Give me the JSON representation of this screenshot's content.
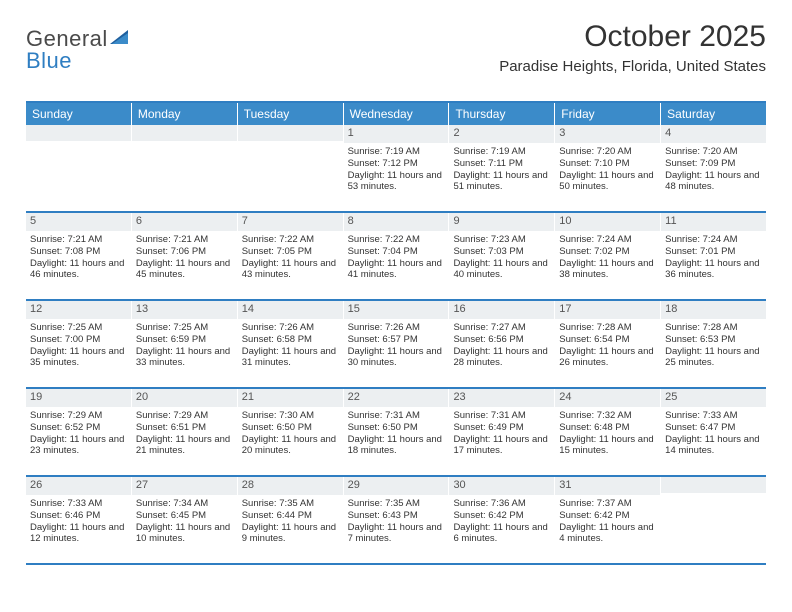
{
  "logo": {
    "text1": "General",
    "text2": "Blue"
  },
  "title": "October 2025",
  "location": "Paradise Heights, Florida, United States",
  "colors": {
    "header_bg": "#3b8bc9",
    "header_text": "#ffffff",
    "rule": "#2f7ec2",
    "daynum_bg": "#eceff1",
    "body_text": "#333333",
    "page_bg": "#ffffff"
  },
  "day_headers": [
    "Sunday",
    "Monday",
    "Tuesday",
    "Wednesday",
    "Thursday",
    "Friday",
    "Saturday"
  ],
  "weeks": [
    [
      {
        "n": "",
        "sr": "",
        "ss": "",
        "dl": ""
      },
      {
        "n": "",
        "sr": "",
        "ss": "",
        "dl": ""
      },
      {
        "n": "",
        "sr": "",
        "ss": "",
        "dl": ""
      },
      {
        "n": "1",
        "sr": "Sunrise: 7:19 AM",
        "ss": "Sunset: 7:12 PM",
        "dl": "Daylight: 11 hours and 53 minutes."
      },
      {
        "n": "2",
        "sr": "Sunrise: 7:19 AM",
        "ss": "Sunset: 7:11 PM",
        "dl": "Daylight: 11 hours and 51 minutes."
      },
      {
        "n": "3",
        "sr": "Sunrise: 7:20 AM",
        "ss": "Sunset: 7:10 PM",
        "dl": "Daylight: 11 hours and 50 minutes."
      },
      {
        "n": "4",
        "sr": "Sunrise: 7:20 AM",
        "ss": "Sunset: 7:09 PM",
        "dl": "Daylight: 11 hours and 48 minutes."
      }
    ],
    [
      {
        "n": "5",
        "sr": "Sunrise: 7:21 AM",
        "ss": "Sunset: 7:08 PM",
        "dl": "Daylight: 11 hours and 46 minutes."
      },
      {
        "n": "6",
        "sr": "Sunrise: 7:21 AM",
        "ss": "Sunset: 7:06 PM",
        "dl": "Daylight: 11 hours and 45 minutes."
      },
      {
        "n": "7",
        "sr": "Sunrise: 7:22 AM",
        "ss": "Sunset: 7:05 PM",
        "dl": "Daylight: 11 hours and 43 minutes."
      },
      {
        "n": "8",
        "sr": "Sunrise: 7:22 AM",
        "ss": "Sunset: 7:04 PM",
        "dl": "Daylight: 11 hours and 41 minutes."
      },
      {
        "n": "9",
        "sr": "Sunrise: 7:23 AM",
        "ss": "Sunset: 7:03 PM",
        "dl": "Daylight: 11 hours and 40 minutes."
      },
      {
        "n": "10",
        "sr": "Sunrise: 7:24 AM",
        "ss": "Sunset: 7:02 PM",
        "dl": "Daylight: 11 hours and 38 minutes."
      },
      {
        "n": "11",
        "sr": "Sunrise: 7:24 AM",
        "ss": "Sunset: 7:01 PM",
        "dl": "Daylight: 11 hours and 36 minutes."
      }
    ],
    [
      {
        "n": "12",
        "sr": "Sunrise: 7:25 AM",
        "ss": "Sunset: 7:00 PM",
        "dl": "Daylight: 11 hours and 35 minutes."
      },
      {
        "n": "13",
        "sr": "Sunrise: 7:25 AM",
        "ss": "Sunset: 6:59 PM",
        "dl": "Daylight: 11 hours and 33 minutes."
      },
      {
        "n": "14",
        "sr": "Sunrise: 7:26 AM",
        "ss": "Sunset: 6:58 PM",
        "dl": "Daylight: 11 hours and 31 minutes."
      },
      {
        "n": "15",
        "sr": "Sunrise: 7:26 AM",
        "ss": "Sunset: 6:57 PM",
        "dl": "Daylight: 11 hours and 30 minutes."
      },
      {
        "n": "16",
        "sr": "Sunrise: 7:27 AM",
        "ss": "Sunset: 6:56 PM",
        "dl": "Daylight: 11 hours and 28 minutes."
      },
      {
        "n": "17",
        "sr": "Sunrise: 7:28 AM",
        "ss": "Sunset: 6:54 PM",
        "dl": "Daylight: 11 hours and 26 minutes."
      },
      {
        "n": "18",
        "sr": "Sunrise: 7:28 AM",
        "ss": "Sunset: 6:53 PM",
        "dl": "Daylight: 11 hours and 25 minutes."
      }
    ],
    [
      {
        "n": "19",
        "sr": "Sunrise: 7:29 AM",
        "ss": "Sunset: 6:52 PM",
        "dl": "Daylight: 11 hours and 23 minutes."
      },
      {
        "n": "20",
        "sr": "Sunrise: 7:29 AM",
        "ss": "Sunset: 6:51 PM",
        "dl": "Daylight: 11 hours and 21 minutes."
      },
      {
        "n": "21",
        "sr": "Sunrise: 7:30 AM",
        "ss": "Sunset: 6:50 PM",
        "dl": "Daylight: 11 hours and 20 minutes."
      },
      {
        "n": "22",
        "sr": "Sunrise: 7:31 AM",
        "ss": "Sunset: 6:50 PM",
        "dl": "Daylight: 11 hours and 18 minutes."
      },
      {
        "n": "23",
        "sr": "Sunrise: 7:31 AM",
        "ss": "Sunset: 6:49 PM",
        "dl": "Daylight: 11 hours and 17 minutes."
      },
      {
        "n": "24",
        "sr": "Sunrise: 7:32 AM",
        "ss": "Sunset: 6:48 PM",
        "dl": "Daylight: 11 hours and 15 minutes."
      },
      {
        "n": "25",
        "sr": "Sunrise: 7:33 AM",
        "ss": "Sunset: 6:47 PM",
        "dl": "Daylight: 11 hours and 14 minutes."
      }
    ],
    [
      {
        "n": "26",
        "sr": "Sunrise: 7:33 AM",
        "ss": "Sunset: 6:46 PM",
        "dl": "Daylight: 11 hours and 12 minutes."
      },
      {
        "n": "27",
        "sr": "Sunrise: 7:34 AM",
        "ss": "Sunset: 6:45 PM",
        "dl": "Daylight: 11 hours and 10 minutes."
      },
      {
        "n": "28",
        "sr": "Sunrise: 7:35 AM",
        "ss": "Sunset: 6:44 PM",
        "dl": "Daylight: 11 hours and 9 minutes."
      },
      {
        "n": "29",
        "sr": "Sunrise: 7:35 AM",
        "ss": "Sunset: 6:43 PM",
        "dl": "Daylight: 11 hours and 7 minutes."
      },
      {
        "n": "30",
        "sr": "Sunrise: 7:36 AM",
        "ss": "Sunset: 6:42 PM",
        "dl": "Daylight: 11 hours and 6 minutes."
      },
      {
        "n": "31",
        "sr": "Sunrise: 7:37 AM",
        "ss": "Sunset: 6:42 PM",
        "dl": "Daylight: 11 hours and 4 minutes."
      },
      {
        "n": "",
        "sr": "",
        "ss": "",
        "dl": ""
      }
    ]
  ]
}
